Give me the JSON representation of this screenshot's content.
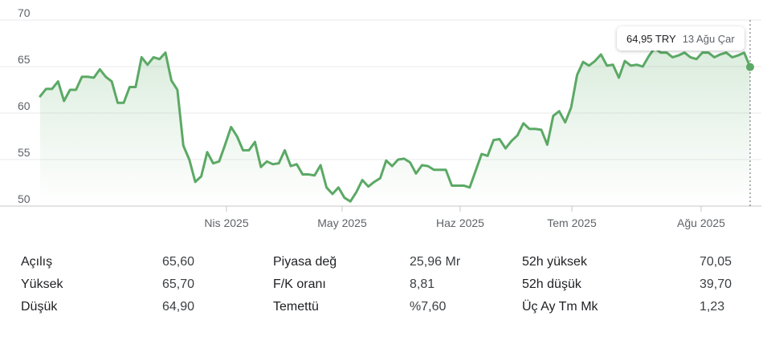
{
  "chart_data": {
    "type": "area",
    "y_ticks": [
      "70",
      "65",
      "60",
      "55",
      "50"
    ],
    "ylim": [
      50,
      70
    ],
    "x_tick_labels": [
      "Nis 2025",
      "May 2025",
      "Haz 2025",
      "Tem 2025",
      "Ağu 2025"
    ],
    "grid": "horizontal",
    "line_color": "#5ba965",
    "values": [
      61.8,
      62.6,
      62.6,
      63.4,
      61.3,
      62.5,
      62.5,
      63.9,
      63.9,
      63.8,
      64.7,
      63.9,
      63.4,
      61.1,
      61.1,
      62.8,
      62.8,
      66.0,
      65.2,
      66.0,
      65.8,
      66.5,
      63.5,
      62.5,
      56.5,
      55.0,
      52.6,
      53.2,
      55.8,
      54.6,
      54.8,
      56.6,
      58.5,
      57.5,
      56.0,
      56.0,
      56.9,
      54.2,
      54.8,
      54.5,
      54.6,
      56.0,
      54.3,
      54.5,
      53.4,
      53.4,
      53.3,
      54.4,
      52.0,
      51.3,
      52.0,
      50.9,
      50.5,
      51.5,
      52.8,
      52.1,
      52.6,
      53.0,
      54.9,
      54.3,
      55.0,
      55.1,
      54.7,
      53.5,
      54.4,
      54.3,
      53.9,
      53.9,
      53.9,
      52.2,
      52.2,
      52.2,
      52.0,
      53.8,
      55.6,
      55.4,
      57.1,
      57.2,
      56.2,
      57.0,
      57.6,
      58.9,
      58.3,
      58.3,
      58.2,
      56.6,
      59.7,
      60.2,
      59.0,
      60.6,
      64.1,
      65.5,
      65.1,
      65.6,
      66.3,
      65.1,
      65.2,
      63.8,
      65.6,
      65.1,
      65.2,
      65.0,
      66.1,
      67.0,
      66.5,
      66.5,
      66.0,
      66.2,
      66.5,
      66.0,
      65.8,
      66.5,
      66.5,
      66.0,
      66.3,
      66.5,
      66.0,
      66.2,
      66.5,
      64.95
    ]
  },
  "tooltip": {
    "price": "64,95 TRY",
    "date": "13 Ağu Çar"
  },
  "stats": {
    "rows": [
      {
        "c1": "Açılış",
        "v1": "65,60",
        "c2": "Piyasa değ",
        "v2": "25,96 Mr",
        "c3": "52h yüksek",
        "v3": "70,05"
      },
      {
        "c1": "Yüksek",
        "v1": "65,70",
        "c2": "F/K oranı",
        "v2": "8,81",
        "c3": "52h düşük",
        "v3": "39,70"
      },
      {
        "c1": "Düşük",
        "v1": "64,90",
        "c2": "Temettü",
        "v2": "%7,60",
        "c3": "Üç Ay Tm Mk",
        "v3": "1,23"
      }
    ]
  }
}
